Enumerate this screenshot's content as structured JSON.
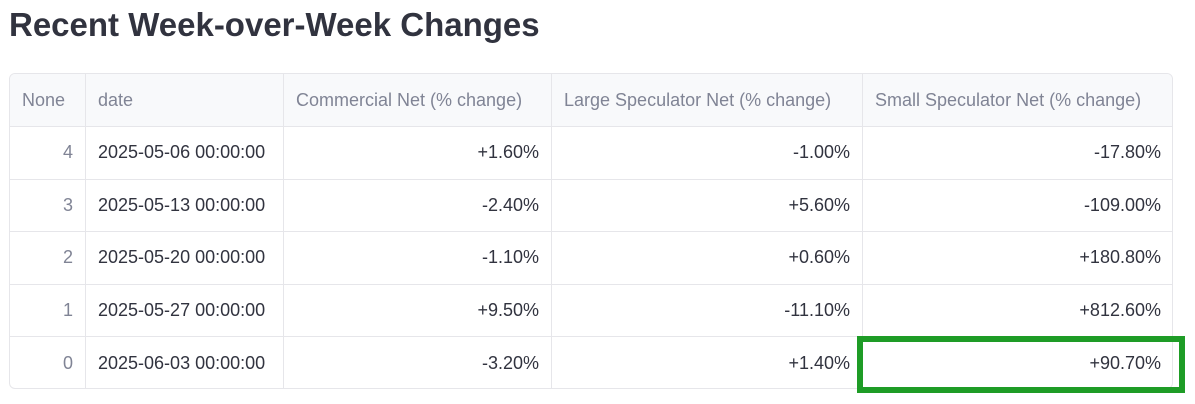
{
  "header": {
    "title": "Recent Week-over-Week Changes"
  },
  "table": {
    "columns": [
      "None",
      "date",
      "Commercial Net (% change)",
      "Large Speculator Net (% change)",
      "Small Speculator Net (% change)"
    ],
    "rows": [
      [
        "4",
        "2025-05-06 00:00:00",
        "+1.60%",
        "-1.00%",
        "-17.80%"
      ],
      [
        "3",
        "2025-05-13 00:00:00",
        "-2.40%",
        "+5.60%",
        "-109.00%"
      ],
      [
        "2",
        "2025-05-20 00:00:00",
        "-1.10%",
        "+0.60%",
        "+180.80%"
      ],
      [
        "1",
        "2025-05-27 00:00:00",
        "+9.50%",
        "-11.10%",
        "+812.60%"
      ],
      [
        "0",
        "2025-06-03 00:00:00",
        "-3.20%",
        "+1.40%",
        "+90.70%"
      ]
    ]
  }
}
